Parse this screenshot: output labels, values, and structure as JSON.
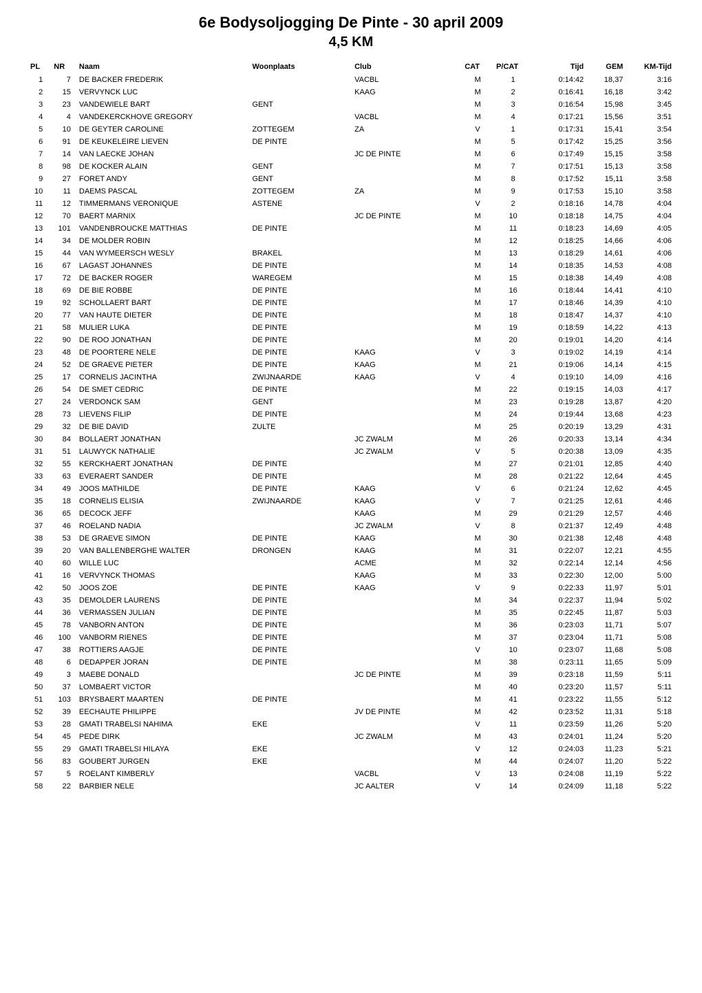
{
  "header": {
    "title": "6e Bodysoljogging De Pinte - 30 april 2009",
    "subtitle": "4,5 KM"
  },
  "columns": {
    "pl": "PL",
    "nr": "NR",
    "naam": "Naam",
    "woonplaats": "Woonplaats",
    "club": "Club",
    "cat": "CAT",
    "pcat": "P/CAT",
    "tijd": "Tijd",
    "gem": "GEM",
    "kmtijd": "KM-Tijd"
  },
  "rows": [
    {
      "pl": "1",
      "nr": "7",
      "naam": "DE BACKER FREDERIK",
      "woon": "",
      "club": "VACBL",
      "cat": "M",
      "pcat": "1",
      "tijd": "0:14:42",
      "gem": "18,37",
      "km": "3:16"
    },
    {
      "pl": "2",
      "nr": "15",
      "naam": "VERVYNCK LUC",
      "woon": "",
      "club": "KAAG",
      "cat": "M",
      "pcat": "2",
      "tijd": "0:16:41",
      "gem": "16,18",
      "km": "3:42"
    },
    {
      "pl": "3",
      "nr": "23",
      "naam": "VANDEWIELE BART",
      "woon": "GENT",
      "club": "",
      "cat": "M",
      "pcat": "3",
      "tijd": "0:16:54",
      "gem": "15,98",
      "km": "3:45"
    },
    {
      "pl": "4",
      "nr": "4",
      "naam": "VANDEKERCKHOVE GREGORY",
      "woon": "",
      "club": "VACBL",
      "cat": "M",
      "pcat": "4",
      "tijd": "0:17:21",
      "gem": "15,56",
      "km": "3:51"
    },
    {
      "pl": "5",
      "nr": "10",
      "naam": "DE GEYTER CAROLINE",
      "woon": "ZOTTEGEM",
      "club": "ZA",
      "cat": "V",
      "pcat": "1",
      "tijd": "0:17:31",
      "gem": "15,41",
      "km": "3:54"
    },
    {
      "pl": "6",
      "nr": "91",
      "naam": "DE KEUKELEIRE LIEVEN",
      "woon": "DE PINTE",
      "club": "",
      "cat": "M",
      "pcat": "5",
      "tijd": "0:17:42",
      "gem": "15,25",
      "km": "3:56"
    },
    {
      "pl": "7",
      "nr": "14",
      "naam": "VAN LAECKE JOHAN",
      "woon": "",
      "club": "JC DE PINTE",
      "cat": "M",
      "pcat": "6",
      "tijd": "0:17:49",
      "gem": "15,15",
      "km": "3:58"
    },
    {
      "pl": "8",
      "nr": "98",
      "naam": "DE KOCKER ALAIN",
      "woon": "GENT",
      "club": "",
      "cat": "M",
      "pcat": "7",
      "tijd": "0:17:51",
      "gem": "15,13",
      "km": "3:58"
    },
    {
      "pl": "9",
      "nr": "27",
      "naam": "FORET ANDY",
      "woon": "GENT",
      "club": "",
      "cat": "M",
      "pcat": "8",
      "tijd": "0:17:52",
      "gem": "15,11",
      "km": "3:58"
    },
    {
      "pl": "10",
      "nr": "11",
      "naam": "DAEMS PASCAL",
      "woon": "ZOTTEGEM",
      "club": "ZA",
      "cat": "M",
      "pcat": "9",
      "tijd": "0:17:53",
      "gem": "15,10",
      "km": "3:58"
    },
    {
      "pl": "11",
      "nr": "12",
      "naam": "TIMMERMANS VERONIQUE",
      "woon": "ASTENE",
      "club": "",
      "cat": "V",
      "pcat": "2",
      "tijd": "0:18:16",
      "gem": "14,78",
      "km": "4:04"
    },
    {
      "pl": "12",
      "nr": "70",
      "naam": "BAERT MARNIX",
      "woon": "",
      "club": "JC DE PINTE",
      "cat": "M",
      "pcat": "10",
      "tijd": "0:18:18",
      "gem": "14,75",
      "km": "4:04"
    },
    {
      "pl": "13",
      "nr": "101",
      "naam": "VANDENBROUCKE MATTHIAS",
      "woon": "DE PINTE",
      "club": "",
      "cat": "M",
      "pcat": "11",
      "tijd": "0:18:23",
      "gem": "14,69",
      "km": "4:05"
    },
    {
      "pl": "14",
      "nr": "34",
      "naam": "DE MOLDER ROBIN",
      "woon": "",
      "club": "",
      "cat": "M",
      "pcat": "12",
      "tijd": "0:18:25",
      "gem": "14,66",
      "km": "4:06"
    },
    {
      "pl": "15",
      "nr": "44",
      "naam": "VAN WYMEERSCH WESLY",
      "woon": "BRAKEL",
      "club": "",
      "cat": "M",
      "pcat": "13",
      "tijd": "0:18:29",
      "gem": "14,61",
      "km": "4:06"
    },
    {
      "pl": "16",
      "nr": "67",
      "naam": "LAGAST JOHANNES",
      "woon": "DE PINTE",
      "club": "",
      "cat": "M",
      "pcat": "14",
      "tijd": "0:18:35",
      "gem": "14,53",
      "km": "4:08"
    },
    {
      "pl": "17",
      "nr": "72",
      "naam": "DE BACKER ROGER",
      "woon": "WAREGEM",
      "club": "",
      "cat": "M",
      "pcat": "15",
      "tijd": "0:18:38",
      "gem": "14,49",
      "km": "4:08"
    },
    {
      "pl": "18",
      "nr": "69",
      "naam": "DE BIE ROBBE",
      "woon": "DE PINTE",
      "club": "",
      "cat": "M",
      "pcat": "16",
      "tijd": "0:18:44",
      "gem": "14,41",
      "km": "4:10"
    },
    {
      "pl": "19",
      "nr": "92",
      "naam": "SCHOLLAERT BART",
      "woon": "DE PINTE",
      "club": "",
      "cat": "M",
      "pcat": "17",
      "tijd": "0:18:46",
      "gem": "14,39",
      "km": "4:10"
    },
    {
      "pl": "20",
      "nr": "77",
      "naam": "VAN HAUTE DIETER",
      "woon": "DE PINTE",
      "club": "",
      "cat": "M",
      "pcat": "18",
      "tijd": "0:18:47",
      "gem": "14,37",
      "km": "4:10"
    },
    {
      "pl": "21",
      "nr": "58",
      "naam": "MULIER LUKA",
      "woon": "DE PINTE",
      "club": "",
      "cat": "M",
      "pcat": "19",
      "tijd": "0:18:59",
      "gem": "14,22",
      "km": "4:13"
    },
    {
      "pl": "22",
      "nr": "90",
      "naam": "DE ROO JONATHAN",
      "woon": "DE PINTE",
      "club": "",
      "cat": "M",
      "pcat": "20",
      "tijd": "0:19:01",
      "gem": "14,20",
      "km": "4:14"
    },
    {
      "pl": "23",
      "nr": "48",
      "naam": "DE POORTERE NELE",
      "woon": "DE PINTE",
      "club": "KAAG",
      "cat": "V",
      "pcat": "3",
      "tijd": "0:19:02",
      "gem": "14,19",
      "km": "4:14"
    },
    {
      "pl": "24",
      "nr": "52",
      "naam": "DE GRAEVE PIETER",
      "woon": "DE PINTE",
      "club": "KAAG",
      "cat": "M",
      "pcat": "21",
      "tijd": "0:19:06",
      "gem": "14,14",
      "km": "4:15"
    },
    {
      "pl": "25",
      "nr": "17",
      "naam": "CORNELIS JACINTHA",
      "woon": "ZWIJNAARDE",
      "club": "KAAG",
      "cat": "V",
      "pcat": "4",
      "tijd": "0:19:10",
      "gem": "14,09",
      "km": "4:16"
    },
    {
      "pl": "26",
      "nr": "54",
      "naam": "DE SMET CEDRIC",
      "woon": "DE PINTE",
      "club": "",
      "cat": "M",
      "pcat": "22",
      "tijd": "0:19:15",
      "gem": "14,03",
      "km": "4:17"
    },
    {
      "pl": "27",
      "nr": "24",
      "naam": "VERDONCK SAM",
      "woon": "GENT",
      "club": "",
      "cat": "M",
      "pcat": "23",
      "tijd": "0:19:28",
      "gem": "13,87",
      "km": "4:20"
    },
    {
      "pl": "28",
      "nr": "73",
      "naam": "LIEVENS FILIP",
      "woon": "DE PINTE",
      "club": "",
      "cat": "M",
      "pcat": "24",
      "tijd": "0:19:44",
      "gem": "13,68",
      "km": "4:23"
    },
    {
      "pl": "29",
      "nr": "32",
      "naam": "DE BIE DAVID",
      "woon": "ZULTE",
      "club": "",
      "cat": "M",
      "pcat": "25",
      "tijd": "0:20:19",
      "gem": "13,29",
      "km": "4:31"
    },
    {
      "pl": "30",
      "nr": "84",
      "naam": "BOLLAERT JONATHAN",
      "woon": "",
      "club": "JC ZWALM",
      "cat": "M",
      "pcat": "26",
      "tijd": "0:20:33",
      "gem": "13,14",
      "km": "4:34"
    },
    {
      "pl": "31",
      "nr": "51",
      "naam": "LAUWYCK NATHALIE",
      "woon": "",
      "club": "JC ZWALM",
      "cat": "V",
      "pcat": "5",
      "tijd": "0:20:38",
      "gem": "13,09",
      "km": "4:35"
    },
    {
      "pl": "32",
      "nr": "55",
      "naam": "KERCKHAERT JONATHAN",
      "woon": "DE PINTE",
      "club": "",
      "cat": "M",
      "pcat": "27",
      "tijd": "0:21:01",
      "gem": "12,85",
      "km": "4:40"
    },
    {
      "pl": "33",
      "nr": "63",
      "naam": "EVERAERT SANDER",
      "woon": "DE PINTE",
      "club": "",
      "cat": "M",
      "pcat": "28",
      "tijd": "0:21:22",
      "gem": "12,64",
      "km": "4:45"
    },
    {
      "pl": "34",
      "nr": "49",
      "naam": "JOOS MATHILDE",
      "woon": "DE PINTE",
      "club": "KAAG",
      "cat": "V",
      "pcat": "6",
      "tijd": "0:21:24",
      "gem": "12,62",
      "km": "4:45"
    },
    {
      "pl": "35",
      "nr": "18",
      "naam": "CORNELIS ELISIA",
      "woon": "ZWIJNAARDE",
      "club": "KAAG",
      "cat": "V",
      "pcat": "7",
      "tijd": "0:21:25",
      "gem": "12,61",
      "km": "4:46"
    },
    {
      "pl": "36",
      "nr": "65",
      "naam": "DECOCK JEFF",
      "woon": "",
      "club": "KAAG",
      "cat": "M",
      "pcat": "29",
      "tijd": "0:21:29",
      "gem": "12,57",
      "km": "4:46"
    },
    {
      "pl": "37",
      "nr": "46",
      "naam": "ROELAND NADIA",
      "woon": "",
      "club": "JC ZWALM",
      "cat": "V",
      "pcat": "8",
      "tijd": "0:21:37",
      "gem": "12,49",
      "km": "4:48"
    },
    {
      "pl": "38",
      "nr": "53",
      "naam": "DE GRAEVE SIMON",
      "woon": "DE PINTE",
      "club": "KAAG",
      "cat": "M",
      "pcat": "30",
      "tijd": "0:21:38",
      "gem": "12,48",
      "km": "4:48"
    },
    {
      "pl": "39",
      "nr": "20",
      "naam": "VAN BALLENBERGHE WALTER",
      "woon": "DRONGEN",
      "club": "KAAG",
      "cat": "M",
      "pcat": "31",
      "tijd": "0:22:07",
      "gem": "12,21",
      "km": "4:55"
    },
    {
      "pl": "40",
      "nr": "60",
      "naam": "WILLE LUC",
      "woon": "",
      "club": "ACME",
      "cat": "M",
      "pcat": "32",
      "tijd": "0:22:14",
      "gem": "12,14",
      "km": "4:56"
    },
    {
      "pl": "41",
      "nr": "16",
      "naam": "VERVYNCK THOMAS",
      "woon": "",
      "club": "KAAG",
      "cat": "M",
      "pcat": "33",
      "tijd": "0:22:30",
      "gem": "12,00",
      "km": "5:00"
    },
    {
      "pl": "42",
      "nr": "50",
      "naam": "JOOS ZOE",
      "woon": "DE PINTE",
      "club": "KAAG",
      "cat": "V",
      "pcat": "9",
      "tijd": "0:22:33",
      "gem": "11,97",
      "km": "5:01"
    },
    {
      "pl": "43",
      "nr": "35",
      "naam": "DEMOLDER LAURENS",
      "woon": "DE PINTE",
      "club": "",
      "cat": "M",
      "pcat": "34",
      "tijd": "0:22:37",
      "gem": "11,94",
      "km": "5:02"
    },
    {
      "pl": "44",
      "nr": "36",
      "naam": "VERMASSEN JULIAN",
      "woon": "DE PINTE",
      "club": "",
      "cat": "M",
      "pcat": "35",
      "tijd": "0:22:45",
      "gem": "11,87",
      "km": "5:03"
    },
    {
      "pl": "45",
      "nr": "78",
      "naam": "VANBORN ANTON",
      "woon": "DE PINTE",
      "club": "",
      "cat": "M",
      "pcat": "36",
      "tijd": "0:23:03",
      "gem": "11,71",
      "km": "5:07"
    },
    {
      "pl": "46",
      "nr": "100",
      "naam": "VANBORM RIENES",
      "woon": "DE PINTE",
      "club": "",
      "cat": "M",
      "pcat": "37",
      "tijd": "0:23:04",
      "gem": "11,71",
      "km": "5:08"
    },
    {
      "pl": "47",
      "nr": "38",
      "naam": "ROTTIERS AAGJE",
      "woon": "DE PINTE",
      "club": "",
      "cat": "V",
      "pcat": "10",
      "tijd": "0:23:07",
      "gem": "11,68",
      "km": "5:08"
    },
    {
      "pl": "48",
      "nr": "6",
      "naam": "DEDAPPER JORAN",
      "woon": "DE PINTE",
      "club": "",
      "cat": "M",
      "pcat": "38",
      "tijd": "0:23:11",
      "gem": "11,65",
      "km": "5:09"
    },
    {
      "pl": "49",
      "nr": "3",
      "naam": "MAEBE DONALD",
      "woon": "",
      "club": "JC DE PINTE",
      "cat": "M",
      "pcat": "39",
      "tijd": "0:23:18",
      "gem": "11,59",
      "km": "5:11"
    },
    {
      "pl": "50",
      "nr": "37",
      "naam": "LOMBAERT VICTOR",
      "woon": "",
      "club": "",
      "cat": "M",
      "pcat": "40",
      "tijd": "0:23:20",
      "gem": "11,57",
      "km": "5:11"
    },
    {
      "pl": "51",
      "nr": "103",
      "naam": "BRYSBAERT MAARTEN",
      "woon": "DE PINTE",
      "club": "",
      "cat": "M",
      "pcat": "41",
      "tijd": "0:23:22",
      "gem": "11,55",
      "km": "5:12"
    },
    {
      "pl": "52",
      "nr": "39",
      "naam": "EECHAUTE PHILIPPE",
      "woon": "",
      "club": "JV DE PINTE",
      "cat": "M",
      "pcat": "42",
      "tijd": "0:23:52",
      "gem": "11,31",
      "km": "5:18"
    },
    {
      "pl": "53",
      "nr": "28",
      "naam": "GMATI TRABELSI NAHIMA",
      "woon": "EKE",
      "club": "",
      "cat": "V",
      "pcat": "11",
      "tijd": "0:23:59",
      "gem": "11,26",
      "km": "5:20"
    },
    {
      "pl": "54",
      "nr": "45",
      "naam": "PEDE DIRK",
      "woon": "",
      "club": "JC ZWALM",
      "cat": "M",
      "pcat": "43",
      "tijd": "0:24:01",
      "gem": "11,24",
      "km": "5:20"
    },
    {
      "pl": "55",
      "nr": "29",
      "naam": "GMATI TRABELSI HILAYA",
      "woon": "EKE",
      "club": "",
      "cat": "V",
      "pcat": "12",
      "tijd": "0:24:03",
      "gem": "11,23",
      "km": "5:21"
    },
    {
      "pl": "56",
      "nr": "83",
      "naam": "GOUBERT JURGEN",
      "woon": "EKE",
      "club": "",
      "cat": "M",
      "pcat": "44",
      "tijd": "0:24:07",
      "gem": "11,20",
      "km": "5:22"
    },
    {
      "pl": "57",
      "nr": "5",
      "naam": "ROELANT KIMBERLY",
      "woon": "",
      "club": "VACBL",
      "cat": "V",
      "pcat": "13",
      "tijd": "0:24:08",
      "gem": "11,19",
      "km": "5:22"
    },
    {
      "pl": "58",
      "nr": "22",
      "naam": "BARBIER NELE",
      "woon": "",
      "club": "JC AALTER",
      "cat": "V",
      "pcat": "14",
      "tijd": "0:24:09",
      "gem": "11,18",
      "km": "5:22"
    }
  ],
  "styling": {
    "background_color": "#ffffff",
    "text_color": "#000000",
    "title_fontsize": 22,
    "subtitle_fontsize": 20,
    "body_fontsize": 11,
    "font_family": "Verdana"
  }
}
